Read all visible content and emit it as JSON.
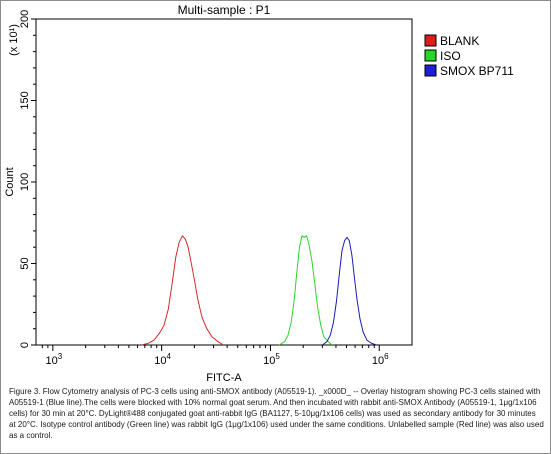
{
  "chart_data": {
    "type": "line",
    "title": "Multi-sample : P1",
    "xlabel": "FITC-A",
    "ylabel": "Count",
    "y_multiplier_label": "(x 10¹)",
    "x_scale": "log",
    "xlim": [
      700,
      2000000
    ],
    "ylim": [
      0,
      200
    ],
    "x_ticks": [
      {
        "value": 1000,
        "base": "10",
        "exp": "3"
      },
      {
        "value": 10000,
        "base": "10",
        "exp": "4"
      },
      {
        "value": 100000,
        "base": "10",
        "exp": "5"
      },
      {
        "value": 1000000,
        "base": "10",
        "exp": "6"
      }
    ],
    "y_ticks": [
      "0",
      "50",
      "100",
      "150",
      "200"
    ],
    "grid": false,
    "legend_position": "right",
    "series": [
      {
        "name": "BLANK",
        "color": "#d42a2a",
        "legend_color": "#e01b1b",
        "points": [
          [
            6500,
            0
          ],
          [
            7500,
            1
          ],
          [
            8500,
            3
          ],
          [
            9500,
            7
          ],
          [
            10500,
            12
          ],
          [
            11500,
            22
          ],
          [
            12500,
            38
          ],
          [
            13500,
            54
          ],
          [
            14500,
            63
          ],
          [
            15500,
            67
          ],
          [
            16500,
            65
          ],
          [
            17500,
            60
          ],
          [
            18500,
            52
          ],
          [
            20000,
            40
          ],
          [
            21500,
            28
          ],
          [
            23500,
            17
          ],
          [
            26000,
            10
          ],
          [
            29000,
            5
          ],
          [
            33000,
            2
          ],
          [
            37000,
            0
          ]
        ]
      },
      {
        "name": "ISO",
        "color": "#2ed22e",
        "legend_color": "#27d627",
        "points": [
          [
            120000,
            0
          ],
          [
            135000,
            2
          ],
          [
            145000,
            6
          ],
          [
            155000,
            14
          ],
          [
            165000,
            27
          ],
          [
            175000,
            45
          ],
          [
            185000,
            60
          ],
          [
            195000,
            67
          ],
          [
            205000,
            66
          ],
          [
            215000,
            67
          ],
          [
            225000,
            62
          ],
          [
            240000,
            52
          ],
          [
            255000,
            38
          ],
          [
            270000,
            24
          ],
          [
            290000,
            12
          ],
          [
            310000,
            5
          ],
          [
            340000,
            2
          ],
          [
            370000,
            0
          ]
        ]
      },
      {
        "name": "SMOX BP711",
        "color": "#1a1ab8",
        "legend_color": "#1d1ddb",
        "points": [
          [
            300000,
            0
          ],
          [
            330000,
            2
          ],
          [
            355000,
            6
          ],
          [
            380000,
            14
          ],
          [
            405000,
            27
          ],
          [
            430000,
            44
          ],
          [
            455000,
            58
          ],
          [
            480000,
            64
          ],
          [
            505000,
            66
          ],
          [
            530000,
            64
          ],
          [
            560000,
            55
          ],
          [
            590000,
            42
          ],
          [
            625000,
            28
          ],
          [
            665000,
            16
          ],
          [
            710000,
            8
          ],
          [
            770000,
            3
          ],
          [
            850000,
            1
          ],
          [
            950000,
            0
          ]
        ]
      }
    ]
  },
  "caption": "Figure 3. Flow Cytometry analysis of PC-3 cells using anti-SMOX antibody (A05519-1). _x000D_ -- Overlay histogram showing PC-3 cells stained with A05519-1 (Blue line).The cells were blocked with 10% normal goat serum. And then incubated with rabbit anti-SMOX Antibody (A05519-1, 1μg/1x106 cells) for 30 min at 20°C. DyLight®488 conjugated goat anti-rabbit IgG (BA1127, 5-10μg/1x106 cells) was used as secondary antibody for 30 minutes at 20°C. Isotype control antibody (Green line) was rabbit IgG (1μg/1x106) used under the same conditions. Unlabelled sample (Red line) was also used as a control."
}
